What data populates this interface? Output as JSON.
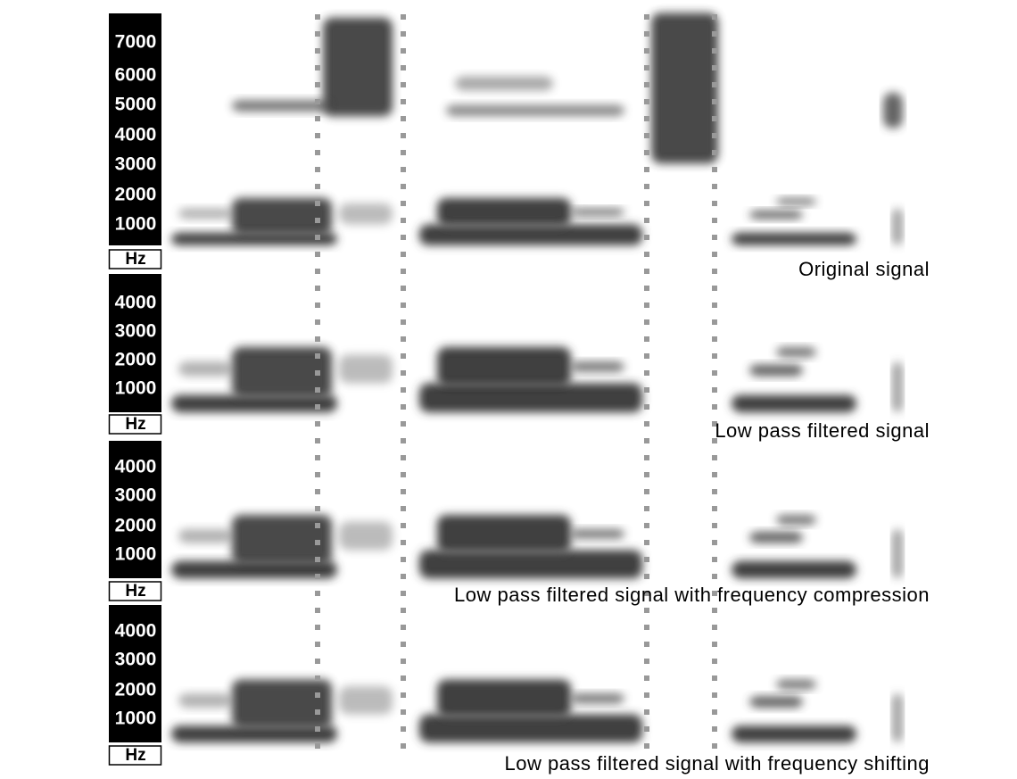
{
  "panels": [
    {
      "ticks": [
        7000,
        6000,
        5000,
        4000,
        3000,
        2000,
        1000
      ],
      "unit": "Hz",
      "caption": "Original signal"
    },
    {
      "ticks": [
        4000,
        3000,
        2000,
        1000
      ],
      "unit": "Hz",
      "caption": "Low pass filtered signal"
    },
    {
      "ticks": [
        4000,
        3000,
        2000,
        1000
      ],
      "unit": "Hz",
      "caption": "Low pass filtered signal with frequency compression"
    },
    {
      "ticks": [
        4000,
        3000,
        2000,
        1000
      ],
      "unit": "Hz",
      "caption": "Low pass filtered signal with frequency shifting"
    }
  ]
}
